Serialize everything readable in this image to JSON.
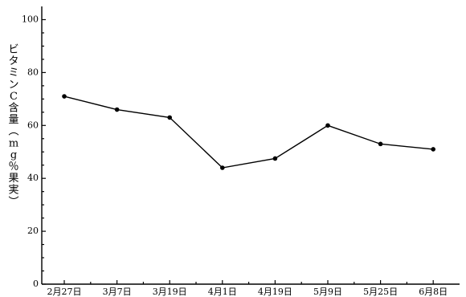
{
  "chart_data": {
    "type": "line",
    "title": "",
    "xlabel": "",
    "ylabel": "ビタミンC含量（mg％果実）",
    "categories": [
      "2月27日",
      "3月7日",
      "3月19日",
      "4月1日",
      "4月19日",
      "5月9日",
      "5月25日",
      "6月8日"
    ],
    "series": [
      {
        "values": [
          71,
          66,
          63,
          44,
          47.5,
          60,
          53,
          51
        ]
      }
    ],
    "ylim": [
      0,
      105
    ],
    "yticks": [
      0,
      20,
      40,
      60,
      80,
      100
    ],
    "grid": false,
    "legend": "none"
  }
}
